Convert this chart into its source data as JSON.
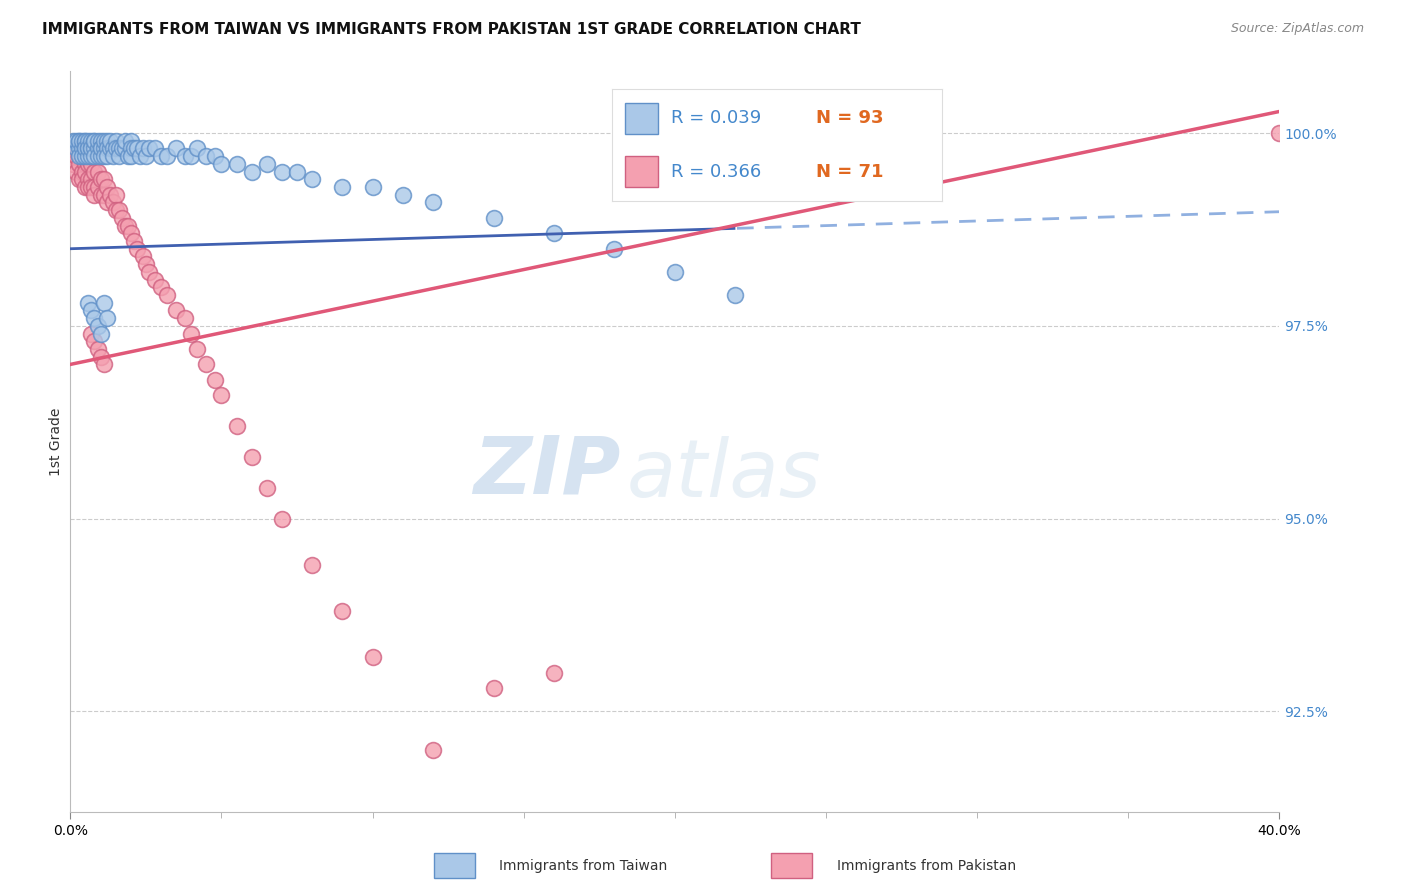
{
  "title": "IMMIGRANTS FROM TAIWAN VS IMMIGRANTS FROM PAKISTAN 1ST GRADE CORRELATION CHART",
  "source": "Source: ZipAtlas.com",
  "ylabel": "1st Grade",
  "ylabel_right_ticks": [
    "100.0%",
    "97.5%",
    "95.0%",
    "92.5%"
  ],
  "ylabel_right_vals": [
    1.0,
    0.975,
    0.95,
    0.925
  ],
  "xmin": 0.0,
  "xmax": 0.4,
  "ymin": 0.912,
  "ymax": 1.008,
  "taiwan_R": 0.039,
  "taiwan_N": 93,
  "pakistan_R": 0.366,
  "pakistan_N": 71,
  "taiwan_marker_facecolor": "#aac8e8",
  "taiwan_marker_edgecolor": "#6090c8",
  "pakistan_marker_facecolor": "#f4a0b0",
  "pakistan_marker_edgecolor": "#d06080",
  "taiwan_line_color": "#4060b0",
  "taiwan_line_dash_color": "#90b0e0",
  "pakistan_line_color": "#e05878",
  "legend_R_color": "#4488cc",
  "legend_N_color": "#e06820",
  "background_color": "#ffffff",
  "grid_color": "#cccccc",
  "title_fontsize": 11,
  "source_fontsize": 9,
  "axis_label_fontsize": 10,
  "tick_fontsize": 10,
  "taiwan_line_intercept": 0.985,
  "taiwan_line_slope": 0.012,
  "taiwan_line_data_extent": 0.22,
  "pakistan_line_intercept": 0.97,
  "pakistan_line_slope": 0.082,
  "taiwan_scatter_x": [
    0.001,
    0.002,
    0.002,
    0.003,
    0.003,
    0.003,
    0.003,
    0.004,
    0.004,
    0.004,
    0.005,
    0.005,
    0.005,
    0.005,
    0.005,
    0.006,
    0.006,
    0.006,
    0.006,
    0.007,
    0.007,
    0.007,
    0.007,
    0.008,
    0.008,
    0.008,
    0.008,
    0.009,
    0.009,
    0.009,
    0.01,
    0.01,
    0.01,
    0.01,
    0.011,
    0.011,
    0.011,
    0.012,
    0.012,
    0.012,
    0.013,
    0.013,
    0.014,
    0.014,
    0.015,
    0.015,
    0.016,
    0.016,
    0.017,
    0.018,
    0.018,
    0.019,
    0.02,
    0.02,
    0.02,
    0.021,
    0.022,
    0.023,
    0.024,
    0.025,
    0.026,
    0.028,
    0.03,
    0.032,
    0.035,
    0.038,
    0.04,
    0.042,
    0.045,
    0.048,
    0.05,
    0.055,
    0.06,
    0.065,
    0.07,
    0.075,
    0.08,
    0.09,
    0.1,
    0.11,
    0.12,
    0.14,
    0.16,
    0.18,
    0.2,
    0.22,
    0.006,
    0.007,
    0.008,
    0.009,
    0.01,
    0.011,
    0.012
  ],
  "taiwan_scatter_y": [
    0.999,
    0.998,
    0.999,
    0.999,
    0.998,
    0.997,
    0.999,
    0.998,
    0.999,
    0.997,
    0.999,
    0.998,
    0.997,
    0.999,
    0.998,
    0.998,
    0.997,
    0.999,
    0.998,
    0.998,
    0.999,
    0.997,
    0.998,
    0.999,
    0.998,
    0.997,
    0.999,
    0.998,
    0.997,
    0.999,
    0.999,
    0.998,
    0.997,
    0.998,
    0.998,
    0.999,
    0.997,
    0.999,
    0.998,
    0.997,
    0.998,
    0.999,
    0.998,
    0.997,
    0.999,
    0.998,
    0.998,
    0.997,
    0.998,
    0.998,
    0.999,
    0.997,
    0.999,
    0.998,
    0.997,
    0.998,
    0.998,
    0.997,
    0.998,
    0.997,
    0.998,
    0.998,
    0.997,
    0.997,
    0.998,
    0.997,
    0.997,
    0.998,
    0.997,
    0.997,
    0.996,
    0.996,
    0.995,
    0.996,
    0.995,
    0.995,
    0.994,
    0.993,
    0.993,
    0.992,
    0.991,
    0.989,
    0.987,
    0.985,
    0.982,
    0.979,
    0.978,
    0.977,
    0.976,
    0.975,
    0.974,
    0.978,
    0.976
  ],
  "pakistan_scatter_x": [
    0.001,
    0.001,
    0.002,
    0.002,
    0.003,
    0.003,
    0.003,
    0.004,
    0.004,
    0.004,
    0.005,
    0.005,
    0.005,
    0.006,
    0.006,
    0.006,
    0.007,
    0.007,
    0.007,
    0.008,
    0.008,
    0.008,
    0.009,
    0.009,
    0.01,
    0.01,
    0.011,
    0.011,
    0.012,
    0.012,
    0.013,
    0.014,
    0.015,
    0.015,
    0.016,
    0.017,
    0.018,
    0.019,
    0.02,
    0.021,
    0.022,
    0.024,
    0.025,
    0.026,
    0.028,
    0.03,
    0.032,
    0.035,
    0.038,
    0.04,
    0.042,
    0.045,
    0.048,
    0.05,
    0.055,
    0.06,
    0.065,
    0.07,
    0.08,
    0.09,
    0.1,
    0.12,
    0.14,
    0.16,
    0.007,
    0.008,
    0.009,
    0.01,
    0.011,
    0.28,
    0.4
  ],
  "pakistan_scatter_y": [
    0.998,
    0.996,
    0.997,
    0.995,
    0.997,
    0.996,
    0.994,
    0.997,
    0.995,
    0.994,
    0.996,
    0.995,
    0.993,
    0.996,
    0.994,
    0.993,
    0.996,
    0.994,
    0.993,
    0.995,
    0.993,
    0.992,
    0.995,
    0.993,
    0.994,
    0.992,
    0.994,
    0.992,
    0.993,
    0.991,
    0.992,
    0.991,
    0.992,
    0.99,
    0.99,
    0.989,
    0.988,
    0.988,
    0.987,
    0.986,
    0.985,
    0.984,
    0.983,
    0.982,
    0.981,
    0.98,
    0.979,
    0.977,
    0.976,
    0.974,
    0.972,
    0.97,
    0.968,
    0.966,
    0.962,
    0.958,
    0.954,
    0.95,
    0.944,
    0.938,
    0.932,
    0.92,
    0.928,
    0.93,
    0.974,
    0.973,
    0.972,
    0.971,
    0.97,
    1.0,
    1.0
  ],
  "watermark_zip": "ZIP",
  "watermark_atlas": "atlas",
  "bottom_legend_taiwan": "Immigrants from Taiwan",
  "bottom_legend_pakistan": "Immigrants from Pakistan"
}
